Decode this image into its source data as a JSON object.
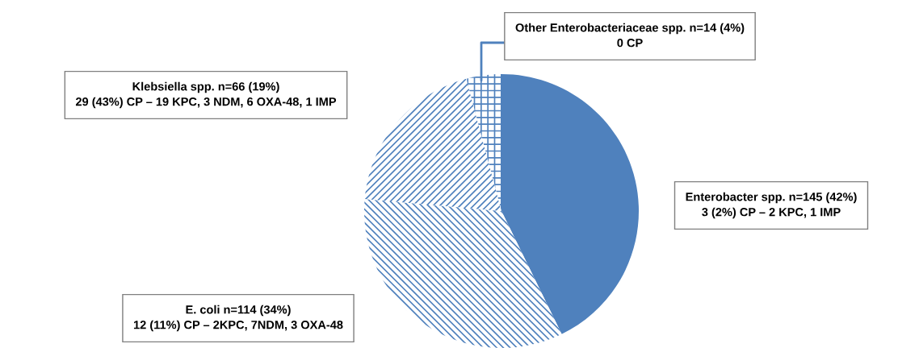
{
  "chart_data": {
    "type": "pie",
    "categories": [
      "Enterobacter spp. n=145 (42%)",
      "E. coli n=114 (34%)",
      "Klebsiella spp. n=66 (19%)",
      "Other Enterobacteriaceae spp. n=14 (4%)"
    ],
    "values": [
      145,
      114,
      66,
      14
    ],
    "colors": [
      "#4f81bd",
      "#4f81bd",
      "#4f81bd",
      "#4f81bd"
    ],
    "annotations": [
      "3 (2%) CP – 2 KPC, 1 IMP",
      "12 (11%) CP – 2KPC, 7NDM, 3 OXA-48",
      "29 (43%) CP – 19 KPC, 3 NDM, 6 OXA-48, 1 IMP",
      "0 CP"
    ]
  }
}
